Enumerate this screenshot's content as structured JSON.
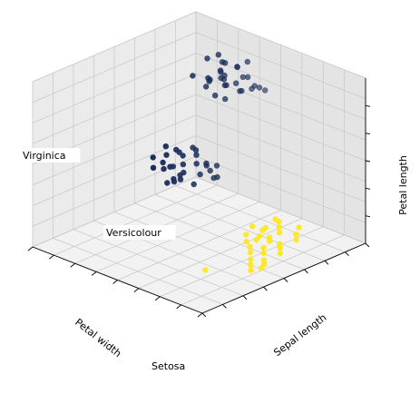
{
  "chart_data": {
    "type": "scatter",
    "dimensions": [
      "Petal width",
      "Sepal length",
      "Petal length"
    ],
    "xlabel": "Petal width",
    "ylabel": "Sepal length",
    "zlabel": "Petal length",
    "tick_labels_shown": false,
    "grid": true,
    "view": "3d",
    "colormap": [
      "#27346b",
      "#ffe84c"
    ],
    "annotations": [
      {
        "label": "Setosa",
        "anchor": "bottom"
      },
      {
        "label": "Versicolour",
        "anchor": "middle-left"
      },
      {
        "label": "Virginica",
        "anchor": "left"
      }
    ],
    "clusters": [
      {
        "label": "Virginica",
        "color": "#1b2e5a",
        "points": [
          [
            0.15,
            0.3,
            0.88
          ],
          [
            0.18,
            0.32,
            0.84
          ],
          [
            0.12,
            0.36,
            0.86
          ],
          [
            0.2,
            0.34,
            0.82
          ],
          [
            0.17,
            0.4,
            0.8
          ],
          [
            0.22,
            0.38,
            0.86
          ],
          [
            0.14,
            0.44,
            0.84
          ],
          [
            0.25,
            0.42,
            0.83
          ],
          [
            0.19,
            0.46,
            0.87
          ],
          [
            0.23,
            0.48,
            0.81
          ],
          [
            0.28,
            0.44,
            0.85
          ],
          [
            0.16,
            0.5,
            0.82
          ],
          [
            0.26,
            0.52,
            0.84
          ],
          [
            0.12,
            0.26,
            0.8
          ],
          [
            0.3,
            0.36,
            0.87
          ],
          [
            0.21,
            0.28,
            0.78
          ],
          [
            0.27,
            0.32,
            0.79
          ],
          [
            0.1,
            0.4,
            0.9
          ],
          [
            0.32,
            0.48,
            0.8
          ],
          [
            0.08,
            0.32,
            0.83
          ],
          [
            0.24,
            0.56,
            0.86
          ],
          [
            0.18,
            0.24,
            0.89
          ],
          [
            0.29,
            0.26,
            0.84
          ],
          [
            0.11,
            0.48,
            0.78
          ],
          [
            0.33,
            0.4,
            0.89
          ],
          [
            0.07,
            0.2,
            0.85
          ],
          [
            0.05,
            0.22,
            0.8
          ],
          [
            0.36,
            0.46,
            0.83
          ],
          [
            0.2,
            0.6,
            0.85
          ],
          [
            0.14,
            0.3,
            0.77
          ]
        ]
      },
      {
        "label": "Versicolour",
        "color": "#1b2e5a",
        "points": [
          [
            0.62,
            0.52,
            0.6
          ],
          [
            0.66,
            0.56,
            0.58
          ],
          [
            0.6,
            0.58,
            0.62
          ],
          [
            0.68,
            0.52,
            0.56
          ],
          [
            0.64,
            0.62,
            0.6
          ],
          [
            0.7,
            0.58,
            0.54
          ],
          [
            0.58,
            0.54,
            0.64
          ],
          [
            0.72,
            0.62,
            0.58
          ],
          [
            0.66,
            0.66,
            0.56
          ],
          [
            0.62,
            0.48,
            0.62
          ],
          [
            0.74,
            0.56,
            0.6
          ],
          [
            0.6,
            0.64,
            0.58
          ],
          [
            0.68,
            0.46,
            0.56
          ],
          [
            0.76,
            0.6,
            0.55
          ],
          [
            0.64,
            0.7,
            0.59
          ],
          [
            0.7,
            0.5,
            0.63
          ],
          [
            0.56,
            0.6,
            0.56
          ],
          [
            0.78,
            0.66,
            0.58
          ],
          [
            0.72,
            0.44,
            0.6
          ],
          [
            0.66,
            0.74,
            0.57
          ],
          [
            0.58,
            0.46,
            0.58
          ],
          [
            0.8,
            0.58,
            0.62
          ],
          [
            0.62,
            0.72,
            0.62
          ],
          [
            0.74,
            0.7,
            0.55
          ],
          [
            0.54,
            0.52,
            0.6
          ],
          [
            0.82,
            0.62,
            0.56
          ],
          [
            0.68,
            0.78,
            0.6
          ],
          [
            0.76,
            0.48,
            0.57
          ],
          [
            0.6,
            0.4,
            0.6
          ],
          [
            0.84,
            0.68,
            0.6
          ]
        ]
      },
      {
        "label": "Setosa",
        "color": "#fde725",
        "points": [
          [
            0.3,
            0.7,
            0.1
          ],
          [
            0.34,
            0.72,
            0.11
          ],
          [
            0.38,
            0.74,
            0.1
          ],
          [
            0.28,
            0.76,
            0.12
          ],
          [
            0.42,
            0.7,
            0.11
          ],
          [
            0.36,
            0.78,
            0.1
          ],
          [
            0.32,
            0.8,
            0.12
          ],
          [
            0.46,
            0.74,
            0.1
          ],
          [
            0.4,
            0.82,
            0.11
          ],
          [
            0.26,
            0.84,
            0.1
          ],
          [
            0.44,
            0.78,
            0.12
          ],
          [
            0.5,
            0.8,
            0.11
          ],
          [
            0.38,
            0.86,
            0.1
          ],
          [
            0.48,
            0.86,
            0.12
          ],
          [
            0.54,
            0.84,
            0.11
          ],
          [
            0.34,
            0.66,
            0.11
          ],
          [
            0.3,
            0.88,
            0.1
          ],
          [
            0.52,
            0.9,
            0.12
          ],
          [
            0.58,
            0.88,
            0.1
          ],
          [
            0.42,
            0.9,
            0.11
          ],
          [
            0.24,
            0.72,
            0.12
          ],
          [
            0.56,
            0.94,
            0.11
          ],
          [
            0.62,
            0.92,
            0.1
          ],
          [
            0.6,
            0.98,
            0.12
          ],
          [
            0.2,
            0.8,
            0.1
          ],
          [
            0.46,
            0.94,
            0.11
          ],
          [
            0.64,
            1.0,
            0.12
          ],
          [
            0.22,
            0.68,
            0.11
          ],
          [
            0.66,
            0.96,
            0.1
          ],
          [
            0.94,
            0.96,
            0.22
          ]
        ]
      }
    ]
  }
}
